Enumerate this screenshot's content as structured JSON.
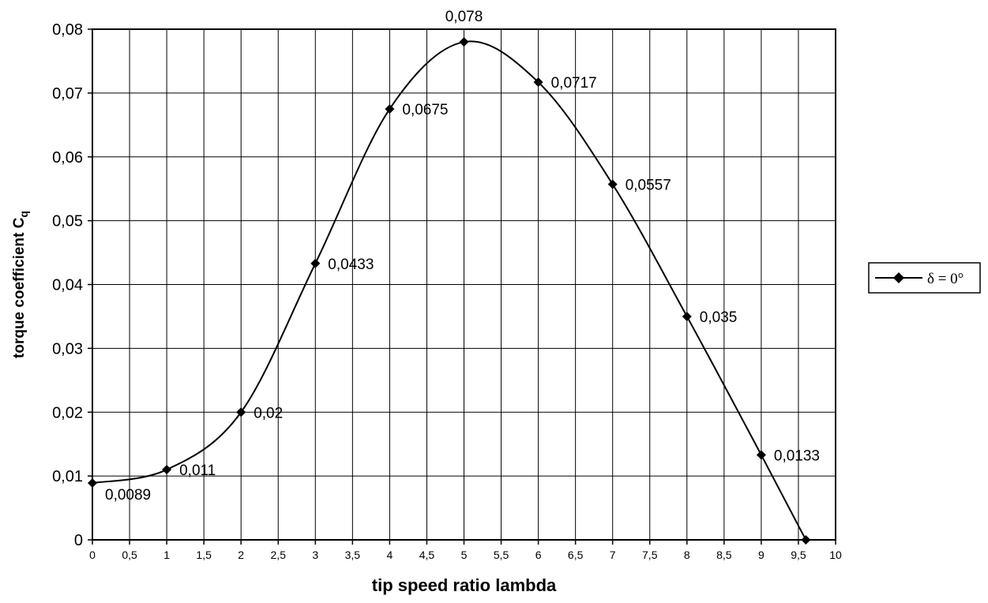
{
  "chart_data": {
    "type": "line",
    "title": "",
    "xlabel": "tip speed ratio lambda",
    "ylabel_main": "torque coefficient C",
    "ylabel_sub": "q",
    "xlim": [
      0,
      10
    ],
    "ylim": [
      0,
      0.08
    ],
    "grid": true,
    "legend_position": "right",
    "x_ticks": [
      "0",
      "0,5",
      "1",
      "1,5",
      "2",
      "2,5",
      "3",
      "3,5",
      "4",
      "4,5",
      "5",
      "5,5",
      "6",
      "6,5",
      "7",
      "7,5",
      "8",
      "8,5",
      "9",
      "9,5",
      "10"
    ],
    "y_ticks": [
      "0",
      "0,01",
      "0,02",
      "0,03",
      "0,04",
      "0,05",
      "0,06",
      "0,07",
      "0,08"
    ],
    "series": [
      {
        "name": "δ = 0°",
        "color": "#000000",
        "marker": "diamond",
        "x": [
          0,
          1,
          2,
          3,
          4,
          5,
          6,
          7,
          8,
          9,
          9.6
        ],
        "y": [
          0.0089,
          0.011,
          0.02,
          0.0433,
          0.0675,
          0.078,
          0.0717,
          0.0557,
          0.035,
          0.0133,
          0
        ],
        "data_labels": [
          "0,0089",
          "0,011",
          "0,02",
          "0,0433",
          "0,0675",
          "0,078",
          "0,0717",
          "0,0557",
          "0,035",
          "0,0133",
          ""
        ]
      }
    ]
  }
}
